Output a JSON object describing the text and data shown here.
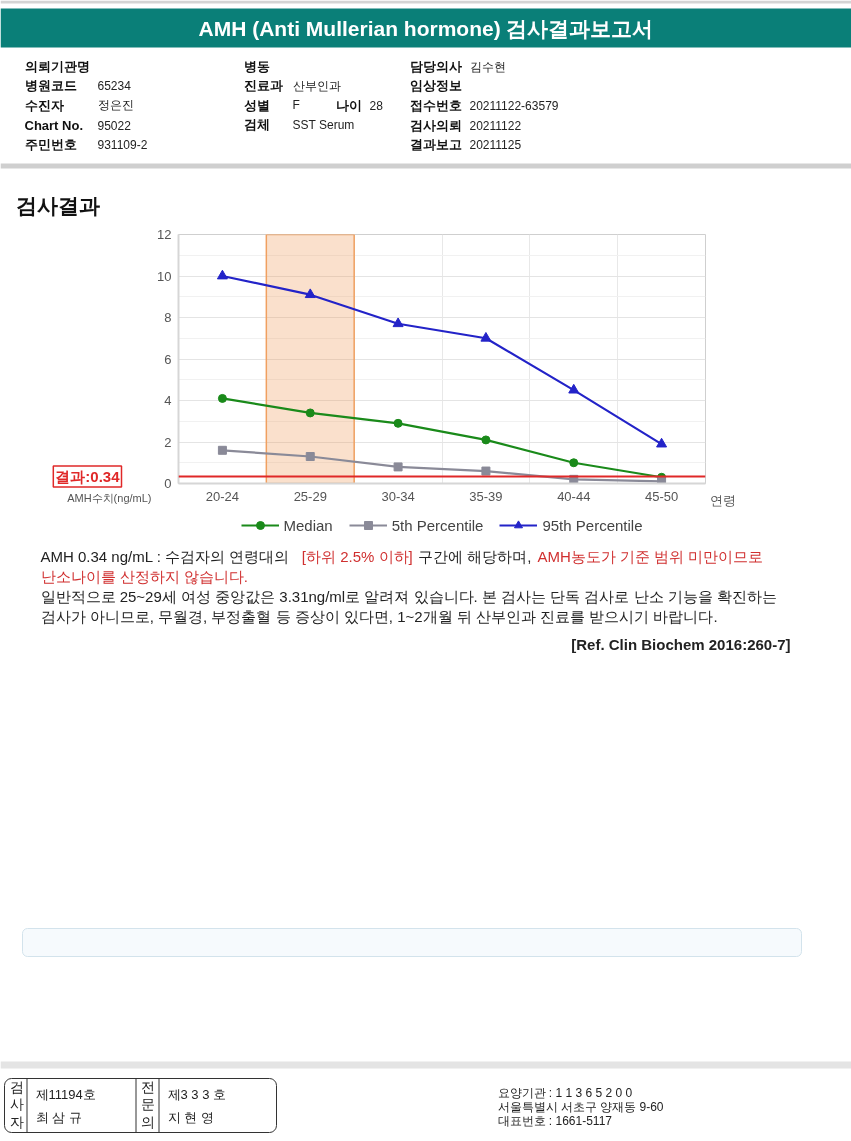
{
  "chart_data": {
    "type": "line",
    "title": "AMH (Anti Mullerian hormone) 검사결과보고서",
    "subtitle": "검사결과",
    "xlabel": "연령",
    "ylabel": "AMH수치(ng/mL)",
    "categories": [
      "20-24",
      "25-29",
      "30-34",
      "35-39",
      "40-44",
      "45-50"
    ],
    "series": [
      {
        "name": "Median",
        "color": "#1a8a1a",
        "marker": "circle",
        "values": [
          4.1,
          3.4,
          2.9,
          2.1,
          1.0,
          0.3
        ]
      },
      {
        "name": "5th Percentile",
        "color": "#8a8a98",
        "marker": "square",
        "values": [
          1.6,
          1.3,
          0.8,
          0.6,
          0.2,
          0.1
        ]
      },
      {
        "name": "95th Percentile",
        "color": "#2323c8",
        "marker": "triangle",
        "values": [
          10.0,
          9.1,
          7.7,
          7.0,
          4.5,
          1.9
        ]
      }
    ],
    "ylim": [
      0,
      12
    ],
    "yticks": [
      0,
      2,
      4,
      6,
      8,
      10,
      12
    ],
    "grid": true,
    "legend": "bottom",
    "line_style": "solid",
    "ref_lines": [
      {
        "axis": "y",
        "value": 0.34,
        "label": "결과:0.34",
        "color": "#e02828"
      }
    ],
    "bands": [
      {
        "axis": "x",
        "from": "25-29",
        "to": "25-29",
        "color": "#f0a060"
      }
    ],
    "annotations": [
      "의뢰기관명",
      "병동",
      "담당의사",
      "김수현",
      "병원코드",
      "65234",
      "진료과",
      "산부인과",
      "임상정보",
      "수진자",
      "정은진",
      "성별",
      "F",
      "나이",
      "28",
      "접수번호",
      "20211122-63579",
      "Chart No.",
      "95022",
      "검체",
      "SST Serum",
      "검사의뢰",
      "20211122",
      "주민번호",
      "931109-2",
      "결과보고",
      "20211125",
      "AMH  0.34 ng/mL : 수검자의 연령대의",
      "[하위 2.5% 이하]",
      "구간에 해당하며,",
      "AMH농도가 기준 범위 미만이므로",
      "난소나이를 산정하지 않습니다.",
      "일반적으로 25~29세 여성 중앙값은 3.31ng/ml로 알려져 있습니다. 본 검사는 단독 검사로 난소 기능을 확진하는",
      "검사가 아니므로, 무월경, 부정출혈 등 증상이 있다면, 1~2개월 뒤 산부인과 진료를 받으시기 바랍니다.",
      "[Ref. Clin Biochem 2016:260-7]",
      "검사자",
      "제11194호",
      "최 삼 규",
      "전문의",
      "제3 3 3 호",
      "지 현 영",
      "요양기관 : 1 1 3 6 5 2 0 0",
      "서울특별시 서초구 양재동 9-60",
      "대표번호 : 1661-5117"
    ]
  }
}
